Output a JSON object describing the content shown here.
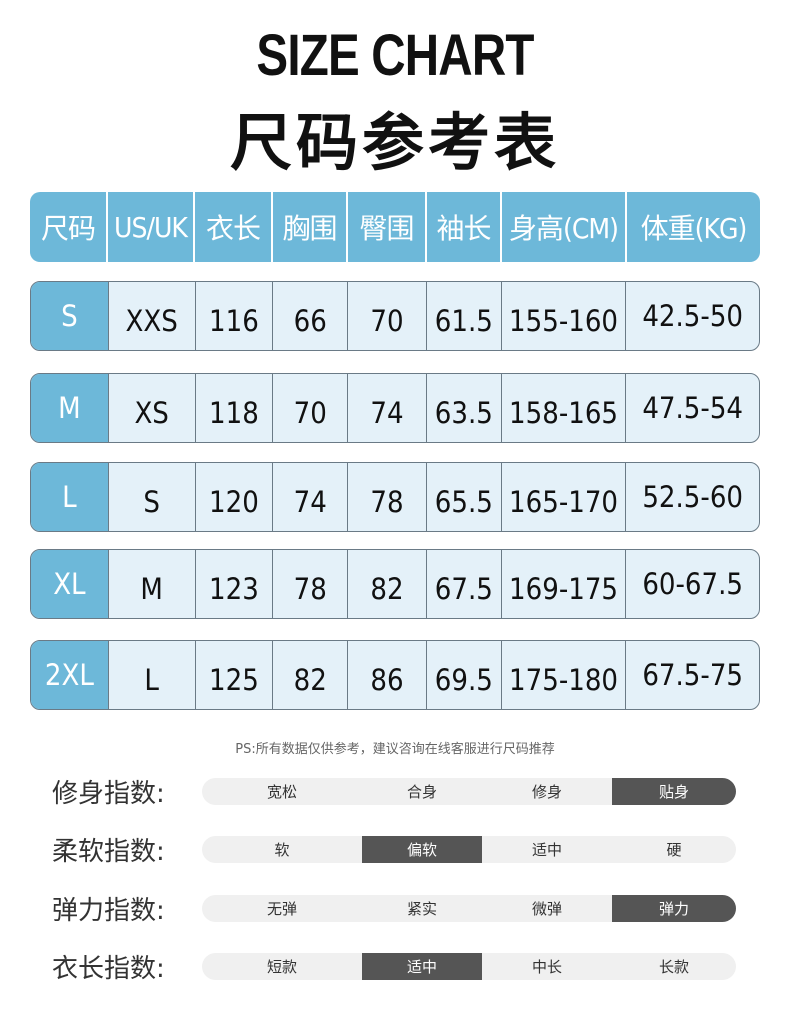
{
  "title_en": "SIZE CHART",
  "title_cn": "尺码参考表",
  "table": {
    "headers": [
      "尺码",
      "US/UK",
      "衣长",
      "胸围",
      "臀围",
      "袖长",
      "身高(CM)",
      "体重(KG)"
    ],
    "rows": [
      [
        "S",
        "XXS",
        "116",
        "66",
        "70",
        "61.5",
        "155-160",
        "42.5-50"
      ],
      [
        "M",
        "XS",
        "118",
        "70",
        "74",
        "63.5",
        "158-165",
        "47.5-54"
      ],
      [
        "L",
        "S",
        "120",
        "74",
        "78",
        "65.5",
        "165-170",
        "52.5-60"
      ],
      [
        "XL",
        "M",
        "123",
        "78",
        "82",
        "67.5",
        "169-175",
        "60-67.5"
      ],
      [
        "2XL",
        "L",
        "125",
        "82",
        "86",
        "69.5",
        "175-180",
        "67.5-75"
      ]
    ]
  },
  "note": "PS:所有数据仅供参考，建议咨询在线客服进行尺码推荐",
  "indices": [
    {
      "label": "修身指数:",
      "options": [
        "宽松",
        "合身",
        "修身",
        "贴身"
      ],
      "selected": 3
    },
    {
      "label": "柔软指数:",
      "options": [
        "软",
        "偏软",
        "适中",
        "硬"
      ],
      "selected": 1
    },
    {
      "label": "弹力指数:",
      "options": [
        "无弹",
        "紧实",
        "微弹",
        "弹力"
      ],
      "selected": 3
    },
    {
      "label": "衣长指数:",
      "options": [
        "短款",
        "适中",
        "中长",
        "长款"
      ],
      "selected": 1
    }
  ],
  "colors": {
    "accent": "#6db8d9",
    "cell": "#e4f1f9",
    "selected": "#555555"
  }
}
